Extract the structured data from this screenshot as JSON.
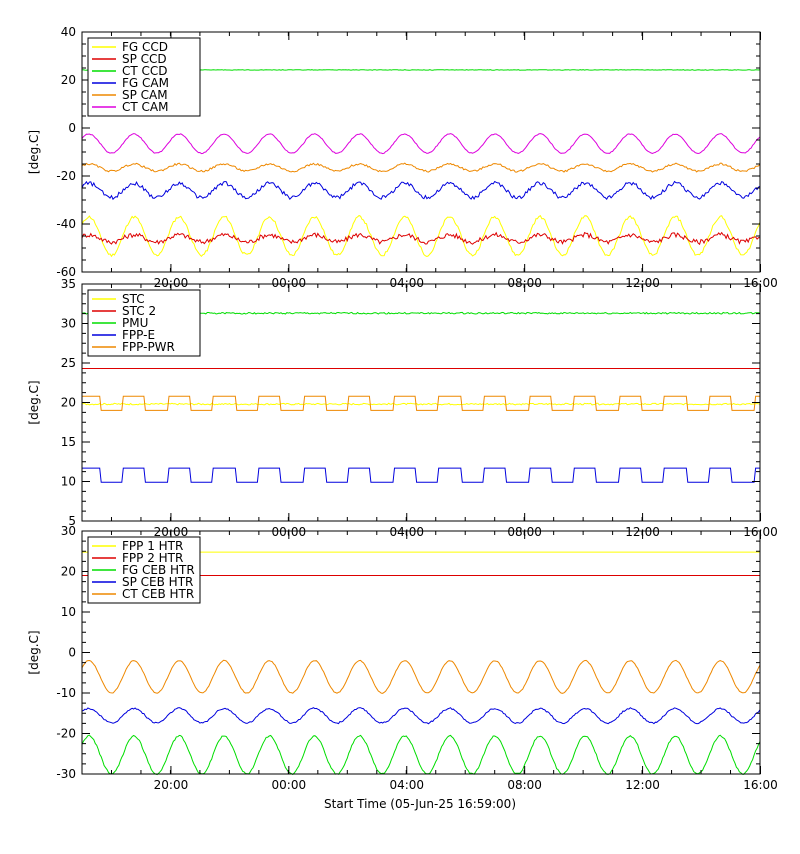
{
  "x_label": "Start Time (05-Jun-25 16:59:00)",
  "colors": {
    "yellow": "#ffff00",
    "red": "#dd0000",
    "green": "#00dd00",
    "blue": "#0000dd",
    "orange": "#ee8800",
    "magenta": "#dd00dd"
  },
  "chart_data": [
    {
      "type": "line",
      "ylabel": "[deg.C]",
      "ylim": [
        -60,
        40
      ],
      "yticks": [
        -60,
        -40,
        -20,
        0,
        20,
        40
      ],
      "xlim": [
        0,
        23
      ],
      "xtick_labels": [
        "20:00",
        "00:00",
        "04:00",
        "08:00",
        "12:00",
        "16:00"
      ],
      "xtick_hours": [
        3.0167,
        7.0167,
        11.0167,
        15.0167,
        19.0167,
        23.0167
      ],
      "legend_position": "top-left",
      "series": [
        {
          "name": "FG CCD",
          "color": "yellow",
          "base": -45,
          "amp": 8,
          "period": 1.53,
          "noise": 0.6
        },
        {
          "name": "SP CCD",
          "color": "red",
          "base": -46,
          "amp": 1.5,
          "period": 1.53,
          "noise": 1.0
        },
        {
          "name": "CT CCD",
          "color": "green",
          "base": 24.2,
          "amp": 0,
          "period": 1.53,
          "noise": 0.1
        },
        {
          "name": "FG CAM",
          "color": "blue",
          "base": -26,
          "amp": 3,
          "period": 1.53,
          "noise": 0.8
        },
        {
          "name": "SP CAM",
          "color": "orange",
          "base": -16.5,
          "amp": 1.5,
          "period": 1.53,
          "noise": 0.4
        },
        {
          "name": "CT CAM",
          "color": "magenta",
          "base": -6.5,
          "amp": 4,
          "period": 1.53,
          "noise": 0.2
        }
      ]
    },
    {
      "type": "line",
      "ylabel": "[deg.C]",
      "ylim": [
        5,
        35
      ],
      "yticks": [
        5,
        10,
        15,
        20,
        25,
        30,
        35
      ],
      "xlim": [
        0,
        23
      ],
      "xtick_labels": [
        "20:00",
        "00:00",
        "04:00",
        "08:00",
        "12:00",
        "16:00"
      ],
      "xtick_hours": [
        3.0167,
        7.0167,
        11.0167,
        15.0167,
        19.0167,
        23.0167
      ],
      "legend_position": "top-left",
      "series": [
        {
          "name": "STC",
          "color": "yellow",
          "base": 19.8,
          "amp": 0,
          "period": 1.53,
          "noise": 0.1
        },
        {
          "name": "STC 2",
          "color": "red",
          "base": 24.3,
          "amp": 0,
          "period": 1.53,
          "noise": 0
        },
        {
          "name": "PMU",
          "color": "green",
          "base": 31.3,
          "amp": 0,
          "period": 1.53,
          "noise": 0.1
        },
        {
          "name": "FPP-E",
          "color": "blue",
          "base": 10.8,
          "amp": 0.9,
          "period": 1.53,
          "noise": 0
        },
        {
          "name": "FPP-PWR",
          "color": "orange",
          "base": 19.9,
          "amp": 0.9,
          "period": 1.53,
          "noise": 0
        }
      ]
    },
    {
      "type": "line",
      "ylabel": "[deg.C]",
      "ylim": [
        -30,
        30
      ],
      "yticks": [
        -30,
        -20,
        -10,
        0,
        10,
        20,
        30
      ],
      "xlim": [
        0,
        23
      ],
      "xtick_labels": [
        "20:00",
        "00:00",
        "04:00",
        "08:00",
        "12:00",
        "16:00"
      ],
      "xtick_hours": [
        3.0167,
        7.0167,
        11.0167,
        15.0167,
        19.0167,
        23.0167
      ],
      "legend_position": "top-left",
      "series": [
        {
          "name": "FPP 1 HTR",
          "color": "yellow",
          "base": 24.8,
          "amp": 0,
          "period": 1.53,
          "noise": 0
        },
        {
          "name": "FPP 2 HTR",
          "color": "red",
          "base": 19,
          "amp": 0,
          "period": 1.53,
          "noise": 0
        },
        {
          "name": "FG CEB HTR",
          "color": "green",
          "base": -25.3,
          "amp": 4.7,
          "period": 1.53,
          "noise": 0.2
        },
        {
          "name": "SP CEB HTR",
          "color": "blue",
          "base": -15.6,
          "amp": 1.8,
          "period": 1.53,
          "noise": 0.2
        },
        {
          "name": "CT CEB HTR",
          "color": "orange",
          "base": -6,
          "amp": 4,
          "period": 1.53,
          "noise": 0.1
        }
      ]
    }
  ]
}
